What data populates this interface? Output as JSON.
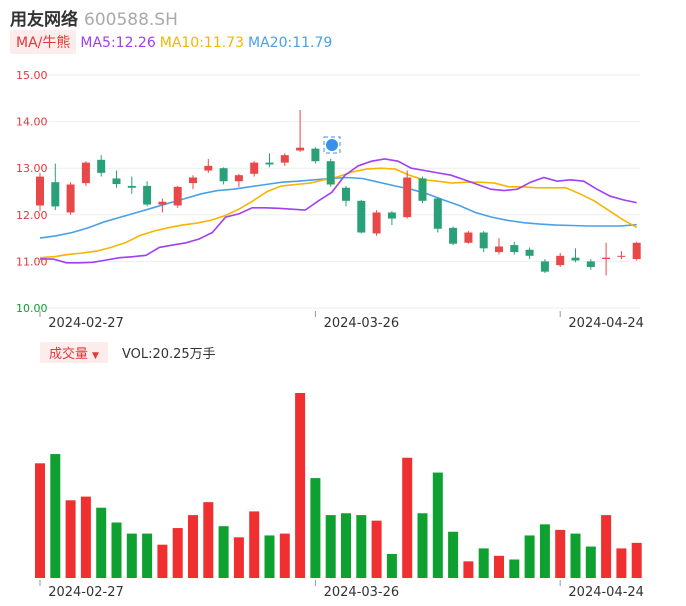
{
  "header": {
    "name": "用友网络",
    "code": "600588.SH"
  },
  "ma_bar": {
    "toggle_label": "MA/牛熊",
    "items": [
      {
        "label": "MA5:12.26",
        "color": "#a040f0"
      },
      {
        "label": "MA10:11.73",
        "color": "#f7b500"
      },
      {
        "label": "MA20:11.79",
        "color": "#4aa0e8"
      }
    ]
  },
  "volume_bar": {
    "toggle_label": "成交量",
    "caret": "▼",
    "vol_label": "VOL:20.25万手"
  },
  "colors": {
    "up": "#f03030",
    "down": "#0ea030",
    "up_candle": "#e84848",
    "down_candle": "#2aa078",
    "axis_red": "#e03a3a"
  },
  "chart_data": [
    {
      "type": "candlestick",
      "ylim": [
        10.0,
        15.0
      ],
      "yticks": [
        "15.00",
        "14.00",
        "13.00",
        "12.00",
        "11.00",
        "10.00"
      ],
      "xtick_labels": [
        "2024-02-27",
        "2024-03-26",
        "2024-04-24"
      ],
      "xtick_index": [
        0,
        18,
        34
      ],
      "grid": true,
      "candles": [
        {
          "o": 12.2,
          "c": 12.82,
          "h": 12.9,
          "l": 12.08
        },
        {
          "o": 12.7,
          "c": 12.18,
          "h": 13.1,
          "l": 12.1
        },
        {
          "o": 12.05,
          "c": 12.65,
          "h": 12.7,
          "l": 12.0
        },
        {
          "o": 12.68,
          "c": 13.12,
          "h": 13.15,
          "l": 12.62
        },
        {
          "o": 13.18,
          "c": 12.9,
          "h": 13.28,
          "l": 12.82
        },
        {
          "o": 12.78,
          "c": 12.66,
          "h": 12.95,
          "l": 12.58
        },
        {
          "o": 12.62,
          "c": 12.58,
          "h": 12.82,
          "l": 12.45
        },
        {
          "o": 12.62,
          "c": 12.22,
          "h": 12.72,
          "l": 12.18
        },
        {
          "o": 12.22,
          "c": 12.28,
          "h": 12.35,
          "l": 12.05
        },
        {
          "o": 12.2,
          "c": 12.6,
          "h": 12.62,
          "l": 12.15
        },
        {
          "o": 12.68,
          "c": 12.8,
          "h": 12.85,
          "l": 12.55
        },
        {
          "o": 12.95,
          "c": 13.05,
          "h": 13.2,
          "l": 12.9
        },
        {
          "o": 13.0,
          "c": 12.72,
          "h": 13.02,
          "l": 12.65
        },
        {
          "o": 12.72,
          "c": 12.85,
          "h": 12.88,
          "l": 12.6
        },
        {
          "o": 12.88,
          "c": 13.12,
          "h": 13.15,
          "l": 12.82
        },
        {
          "o": 13.12,
          "c": 13.08,
          "h": 13.32,
          "l": 13.02
        },
        {
          "o": 13.12,
          "c": 13.28,
          "h": 13.32,
          "l": 13.05
        },
        {
          "o": 13.38,
          "c": 13.44,
          "h": 14.25,
          "l": 13.35
        },
        {
          "o": 13.42,
          "c": 13.15,
          "h": 13.45,
          "l": 13.1
        },
        {
          "o": 13.15,
          "c": 12.65,
          "h": 13.2,
          "l": 12.6
        },
        {
          "o": 12.58,
          "c": 12.3,
          "h": 12.62,
          "l": 12.18
        },
        {
          "o": 12.3,
          "c": 11.62,
          "h": 12.32,
          "l": 11.6
        },
        {
          "o": 11.6,
          "c": 12.05,
          "h": 12.1,
          "l": 11.55
        },
        {
          "o": 12.05,
          "c": 11.92,
          "h": 12.08,
          "l": 11.78
        },
        {
          "o": 11.95,
          "c": 12.8,
          "h": 12.95,
          "l": 11.92
        },
        {
          "o": 12.78,
          "c": 12.3,
          "h": 12.82,
          "l": 12.25
        },
        {
          "o": 12.35,
          "c": 11.7,
          "h": 12.38,
          "l": 11.62
        },
        {
          "o": 11.72,
          "c": 11.38,
          "h": 11.75,
          "l": 11.35
        },
        {
          "o": 11.4,
          "c": 11.62,
          "h": 11.65,
          "l": 11.38
        },
        {
          "o": 11.62,
          "c": 11.28,
          "h": 11.65,
          "l": 11.2
        },
        {
          "o": 11.2,
          "c": 11.32,
          "h": 11.5,
          "l": 11.15
        },
        {
          "o": 11.35,
          "c": 11.2,
          "h": 11.42,
          "l": 11.15
        },
        {
          "o": 11.25,
          "c": 11.12,
          "h": 11.3,
          "l": 11.05
        },
        {
          "o": 11.0,
          "c": 10.78,
          "h": 11.05,
          "l": 10.75
        },
        {
          "o": 10.92,
          "c": 11.12,
          "h": 11.18,
          "l": 10.88
        },
        {
          "o": 11.08,
          "c": 11.02,
          "h": 11.28,
          "l": 10.98
        },
        {
          "o": 11.0,
          "c": 10.88,
          "h": 11.05,
          "l": 10.82
        },
        {
          "o": 11.05,
          "c": 11.08,
          "h": 11.4,
          "l": 10.7
        },
        {
          "o": 11.1,
          "c": 11.12,
          "h": 11.22,
          "l": 11.05
        },
        {
          "o": 11.05,
          "c": 11.4,
          "h": 11.42,
          "l": 11.02
        }
      ],
      "ma5": [
        11.05,
        11.05,
        10.97,
        10.97,
        10.98,
        11.03,
        11.08,
        11.1,
        11.13,
        11.3,
        11.35,
        11.4,
        11.48,
        11.62,
        11.95,
        12.02,
        12.15,
        12.15,
        12.14,
        12.12,
        12.1,
        12.3,
        12.48,
        12.85,
        13.05,
        13.15,
        13.2,
        13.15,
        13.0,
        12.95,
        12.9,
        12.85,
        12.75,
        12.65,
        12.55,
        12.52,
        12.55,
        12.7,
        12.8,
        12.72,
        12.75,
        12.72,
        12.55,
        12.4,
        12.32,
        12.26
      ],
      "ma10": [
        11.08,
        11.1,
        11.15,
        11.18,
        11.22,
        11.3,
        11.4,
        11.55,
        11.65,
        11.72,
        11.78,
        11.82,
        11.88,
        11.98,
        12.12,
        12.3,
        12.5,
        12.62,
        12.65,
        12.68,
        12.75,
        12.82,
        12.92,
        12.98,
        13.0,
        12.98,
        12.85,
        12.75,
        12.72,
        12.68,
        12.7,
        12.7,
        12.68,
        12.6,
        12.6,
        12.58,
        12.58,
        12.58,
        12.45,
        12.3,
        12.1,
        11.9,
        11.73
      ],
      "ma20": [
        11.5,
        11.55,
        11.62,
        11.72,
        11.85,
        11.95,
        12.05,
        12.15,
        12.25,
        12.35,
        12.45,
        12.52,
        12.55,
        12.6,
        12.65,
        12.7,
        12.72,
        12.75,
        12.78,
        12.8,
        12.78,
        12.7,
        12.62,
        12.55,
        12.45,
        12.32,
        12.2,
        12.05,
        11.95,
        11.88,
        11.83,
        11.8,
        11.78,
        11.77,
        11.76,
        11.76,
        11.76,
        11.79
      ]
    },
    {
      "type": "bar",
      "ylim": [
        0,
        100
      ],
      "xtick_labels": [
        "2024-02-27",
        "2024-03-26",
        "2024-04-24"
      ],
      "xtick_index": [
        0,
        18,
        34
      ],
      "values": [
        62,
        67,
        42,
        44,
        38,
        30,
        24,
        24,
        18,
        27,
        34,
        41,
        28,
        22,
        36,
        23,
        24,
        100,
        54,
        34,
        35,
        34,
        31,
        13,
        65,
        35,
        57,
        25,
        9,
        16,
        12,
        10,
        23,
        29,
        26,
        24,
        17,
        34,
        16,
        19
      ],
      "directions": [
        "up",
        "down",
        "up",
        "up",
        "down",
        "down",
        "down",
        "down",
        "up",
        "up",
        "up",
        "up",
        "down",
        "up",
        "up",
        "down",
        "up",
        "up",
        "down",
        "down",
        "down",
        "down",
        "up",
        "down",
        "up",
        "down",
        "down",
        "down",
        "up",
        "down",
        "up",
        "down",
        "down",
        "down",
        "up",
        "down",
        "down",
        "up",
        "up",
        "up"
      ]
    }
  ]
}
